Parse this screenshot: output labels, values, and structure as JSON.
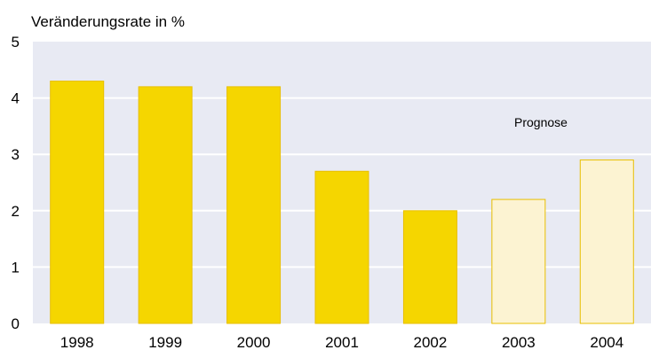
{
  "chart_data": {
    "type": "bar",
    "title": "Veränderungsrate in %",
    "xlabel": "",
    "ylabel": "Veränderungsrate in %",
    "categories": [
      "1998",
      "1999",
      "2000",
      "2001",
      "2002",
      "2003",
      "2004"
    ],
    "values": [
      4.3,
      4.2,
      4.2,
      2.7,
      2.0,
      2.2,
      2.9
    ],
    "forecast": [
      false,
      false,
      false,
      false,
      false,
      true,
      true
    ],
    "ylim": [
      0,
      5
    ],
    "yticks": [
      "0",
      "1",
      "2",
      "3",
      "4",
      "5"
    ],
    "annotation": "Prognose",
    "grid": true,
    "colors": {
      "actual_fill": "#f5d600",
      "forecast_fill": "#fcf3d2",
      "bar_stroke": "#e8bf00",
      "plot_background": "#e8eaf3",
      "gridline": "#ffffff"
    }
  }
}
